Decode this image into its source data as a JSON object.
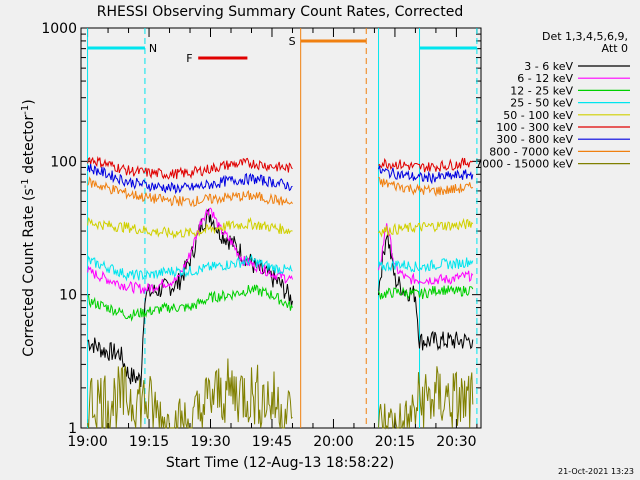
{
  "chart_data": {
    "type": "line",
    "title": "RHESSI Observing Summary Count Rates, Corrected",
    "xlabel": "Start Time (12-Aug-13 18:58:22)",
    "ylabel": "Corrected Count Rate (s⁻¹ detector⁻¹)",
    "ylabel_main": "Corrected Count Rate (s",
    "ylabel_sup1": "-1",
    "ylabel_mid": " detector",
    "ylabel_sup2": "-1",
    "ylabel_end": ")",
    "y_scale": "log",
    "ylim": [
      1,
      1000
    ],
    "xlim": [
      "18:58:22",
      "20:36:00"
    ],
    "x_ticks": [
      "19:00",
      "19:15",
      "19:30",
      "19:45",
      "20:00",
      "20:15",
      "20:30"
    ],
    "y_ticks": [
      "1",
      "10",
      "100",
      "1000"
    ],
    "legend_title": [
      "Det 1,3,4,5,6,9,",
      "Att 0"
    ],
    "legend_position": "right",
    "timestamp": "21-Oct-2021 13:23",
    "x_minutes_from": "19:00",
    "flag_bars": [
      {
        "label": "N",
        "color": "#00e5ee",
        "segments": [
          [
            0,
            14
          ],
          [
            81,
            95
          ]
        ]
      },
      {
        "label": "F",
        "color": "#e00000",
        "segments": [
          [
            27,
            39
          ]
        ]
      },
      {
        "label": "S",
        "color": "#f08010",
        "segments": [
          [
            52,
            68
          ]
        ]
      }
    ],
    "vertical_lines": [
      {
        "time": 0,
        "color": "#00e5ee",
        "style": "solid"
      },
      {
        "time": 14,
        "color": "#00e5ee",
        "style": "dashed"
      },
      {
        "time": 52,
        "color": "#f08010",
        "style": "solid"
      },
      {
        "time": 68,
        "color": "#f08010",
        "style": "dashed"
      },
      {
        "time": 71,
        "color": "#00e5ee",
        "style": "solid"
      },
      {
        "time": 81,
        "color": "#00e5ee",
        "style": "solid"
      },
      {
        "time": 95,
        "color": "#00e5ee",
        "style": "dashed"
      }
    ],
    "series": [
      {
        "name": "3 - 6 keV",
        "color": "#000000",
        "seg1": [
          [
            0,
            4.5
          ],
          [
            4,
            3.8
          ],
          [
            8,
            3.6
          ],
          [
            10,
            2.5
          ],
          [
            13,
            2.3
          ],
          [
            14,
            10
          ],
          [
            18,
            11
          ],
          [
            22,
            12
          ],
          [
            25,
            18
          ],
          [
            28,
            35
          ],
          [
            30,
            40
          ],
          [
            32,
            30
          ],
          [
            35,
            25
          ],
          [
            38,
            20
          ],
          [
            41,
            16
          ],
          [
            44,
            14
          ],
          [
            47,
            12
          ],
          [
            50,
            9
          ]
        ],
        "seg2": [
          [
            71,
            11
          ],
          [
            73,
            30
          ],
          [
            75,
            13
          ],
          [
            77,
            11
          ],
          [
            80,
            10
          ],
          [
            81,
            4.5
          ],
          [
            85,
            4.5
          ],
          [
            88,
            4.5
          ],
          [
            92,
            4.5
          ],
          [
            94,
            4.6
          ]
        ]
      },
      {
        "name": "6 - 12 keV",
        "color": "#ff00ff",
        "seg1": [
          [
            0,
            15
          ],
          [
            5,
            13
          ],
          [
            10,
            11.5
          ],
          [
            14,
            11
          ],
          [
            18,
            12
          ],
          [
            22,
            13
          ],
          [
            25,
            20
          ],
          [
            28,
            38
          ],
          [
            30,
            45
          ],
          [
            32,
            32
          ],
          [
            35,
            25
          ],
          [
            38,
            18
          ],
          [
            42,
            16
          ],
          [
            46,
            14
          ],
          [
            50,
            13
          ]
        ],
        "seg2": [
          [
            71,
            14
          ],
          [
            73,
            35
          ],
          [
            75,
            16
          ],
          [
            78,
            13
          ],
          [
            83,
            13
          ],
          [
            88,
            13
          ],
          [
            94,
            14
          ]
        ]
      },
      {
        "name": "12 - 25 keV",
        "color": "#00d000",
        "seg1": [
          [
            0,
            9
          ],
          [
            5,
            8
          ],
          [
            10,
            7
          ],
          [
            15,
            7.5
          ],
          [
            20,
            8
          ],
          [
            25,
            8
          ],
          [
            30,
            9.5
          ],
          [
            35,
            10
          ],
          [
            40,
            11
          ],
          [
            45,
            10
          ],
          [
            50,
            8
          ]
        ],
        "seg2": [
          [
            71,
            10
          ],
          [
            76,
            10.5
          ],
          [
            81,
            10
          ],
          [
            86,
            11
          ],
          [
            90,
            10.5
          ],
          [
            94,
            11
          ]
        ]
      },
      {
        "name": "25 - 50 keV",
        "color": "#00e5ee",
        "seg1": [
          [
            0,
            18
          ],
          [
            5,
            16
          ],
          [
            10,
            14
          ],
          [
            15,
            14
          ],
          [
            20,
            15
          ],
          [
            25,
            15
          ],
          [
            30,
            16
          ],
          [
            35,
            17
          ],
          [
            40,
            18
          ],
          [
            45,
            16
          ],
          [
            50,
            15
          ]
        ],
        "seg2": [
          [
            71,
            16
          ],
          [
            76,
            17
          ],
          [
            81,
            16
          ],
          [
            86,
            17
          ],
          [
            90,
            17
          ],
          [
            94,
            18
          ]
        ]
      },
      {
        "name": "50 - 100 keV",
        "color": "#d0d000",
        "seg1": [
          [
            0,
            35
          ],
          [
            5,
            33
          ],
          [
            10,
            32
          ],
          [
            15,
            30
          ],
          [
            20,
            29
          ],
          [
            25,
            29
          ],
          [
            30,
            31
          ],
          [
            35,
            33
          ],
          [
            40,
            34
          ],
          [
            45,
            32
          ],
          [
            50,
            30
          ]
        ],
        "seg2": [
          [
            71,
            30
          ],
          [
            76,
            31
          ],
          [
            81,
            32
          ],
          [
            86,
            33
          ],
          [
            90,
            33
          ],
          [
            94,
            34
          ]
        ]
      },
      {
        "name": "100 - 300 keV",
        "color": "#e00000",
        "seg1": [
          [
            0,
            105
          ],
          [
            5,
            95
          ],
          [
            10,
            85
          ],
          [
            15,
            82
          ],
          [
            20,
            80
          ],
          [
            25,
            82
          ],
          [
            30,
            88
          ],
          [
            35,
            95
          ],
          [
            40,
            97
          ],
          [
            45,
            92
          ],
          [
            50,
            88
          ]
        ],
        "seg2": [
          [
            71,
            98
          ],
          [
            76,
            95
          ],
          [
            81,
            90
          ],
          [
            86,
            92
          ],
          [
            90,
            95
          ],
          [
            94,
            100
          ]
        ]
      },
      {
        "name": "300 - 800 keV",
        "color": "#0000e0",
        "seg1": [
          [
            0,
            90
          ],
          [
            5,
            80
          ],
          [
            10,
            70
          ],
          [
            15,
            66
          ],
          [
            20,
            63
          ],
          [
            25,
            63
          ],
          [
            30,
            67
          ],
          [
            35,
            72
          ],
          [
            40,
            74
          ],
          [
            45,
            70
          ],
          [
            50,
            65
          ]
        ],
        "seg2": [
          [
            71,
            85
          ],
          [
            76,
            80
          ],
          [
            81,
            75
          ],
          [
            86,
            76
          ],
          [
            90,
            78
          ],
          [
            94,
            80
          ]
        ]
      },
      {
        "name": "800 - 7000 keV",
        "color": "#f08010",
        "seg1": [
          [
            0,
            70
          ],
          [
            5,
            63
          ],
          [
            10,
            57
          ],
          [
            15,
            53
          ],
          [
            20,
            51
          ],
          [
            25,
            50
          ],
          [
            30,
            52
          ],
          [
            35,
            54
          ],
          [
            40,
            55
          ],
          [
            45,
            52
          ],
          [
            50,
            48
          ]
        ],
        "seg2": [
          [
            71,
            70
          ],
          [
            76,
            65
          ],
          [
            81,
            61
          ],
          [
            86,
            60
          ],
          [
            90,
            62
          ],
          [
            94,
            64
          ]
        ]
      },
      {
        "name": "7000 - 15000 keV",
        "color": "#808000",
        "seg1": [
          [
            0,
            1.6
          ],
          [
            5,
            1.6
          ],
          [
            10,
            1.7
          ],
          [
            14,
            1.6
          ],
          [
            20,
            1
          ],
          [
            25,
            1
          ],
          [
            30,
            1.7
          ],
          [
            35,
            1.9
          ],
          [
            40,
            1.8
          ],
          [
            45,
            1.6
          ],
          [
            50,
            1.2
          ]
        ],
        "seg2": [
          [
            71,
            1
          ],
          [
            78,
            1
          ],
          [
            81,
            1.6
          ],
          [
            86,
            1.7
          ],
          [
            90,
            1.6
          ],
          [
            94,
            1.5
          ]
        ]
      }
    ]
  }
}
